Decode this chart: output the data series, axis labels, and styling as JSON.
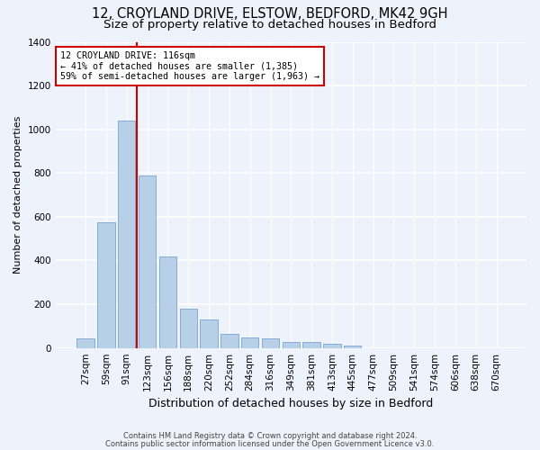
{
  "title1": "12, CROYLAND DRIVE, ELSTOW, BEDFORD, MK42 9GH",
  "title2": "Size of property relative to detached houses in Bedford",
  "xlabel": "Distribution of detached houses by size in Bedford",
  "ylabel": "Number of detached properties",
  "categories": [
    "27sqm",
    "59sqm",
    "91sqm",
    "123sqm",
    "156sqm",
    "188sqm",
    "220sqm",
    "252sqm",
    "284sqm",
    "316sqm",
    "349sqm",
    "381sqm",
    "413sqm",
    "445sqm",
    "477sqm",
    "509sqm",
    "541sqm",
    "574sqm",
    "606sqm",
    "638sqm",
    "670sqm"
  ],
  "values": [
    45,
    575,
    1040,
    790,
    420,
    180,
    130,
    65,
    50,
    45,
    28,
    27,
    18,
    10,
    0,
    0,
    0,
    0,
    0,
    0,
    0
  ],
  "bar_color": "#b8cfe8",
  "bar_edge_color": "#6699cc",
  "vline_color": "#cc0000",
  "annotation_line1": "12 CROYLAND DRIVE: 116sqm",
  "annotation_line2": "← 41% of detached houses are smaller (1,385)",
  "annotation_line3": "59% of semi-detached houses are larger (1,963) →",
  "annotation_box_color": "#ffffff",
  "annotation_box_edge": "#cc0000",
  "ylim": [
    0,
    1400
  ],
  "yticks": [
    0,
    200,
    400,
    600,
    800,
    1000,
    1200,
    1400
  ],
  "footnote1": "Contains HM Land Registry data © Crown copyright and database right 2024.",
  "footnote2": "Contains public sector information licensed under the Open Government Licence v3.0.",
  "bg_color": "#eef2fb",
  "grid_color": "#ffffff",
  "title1_fontsize": 10.5,
  "title2_fontsize": 9.5,
  "ylabel_fontsize": 8,
  "xlabel_fontsize": 9,
  "tick_fontsize": 7.5,
  "footnote_fontsize": 6
}
